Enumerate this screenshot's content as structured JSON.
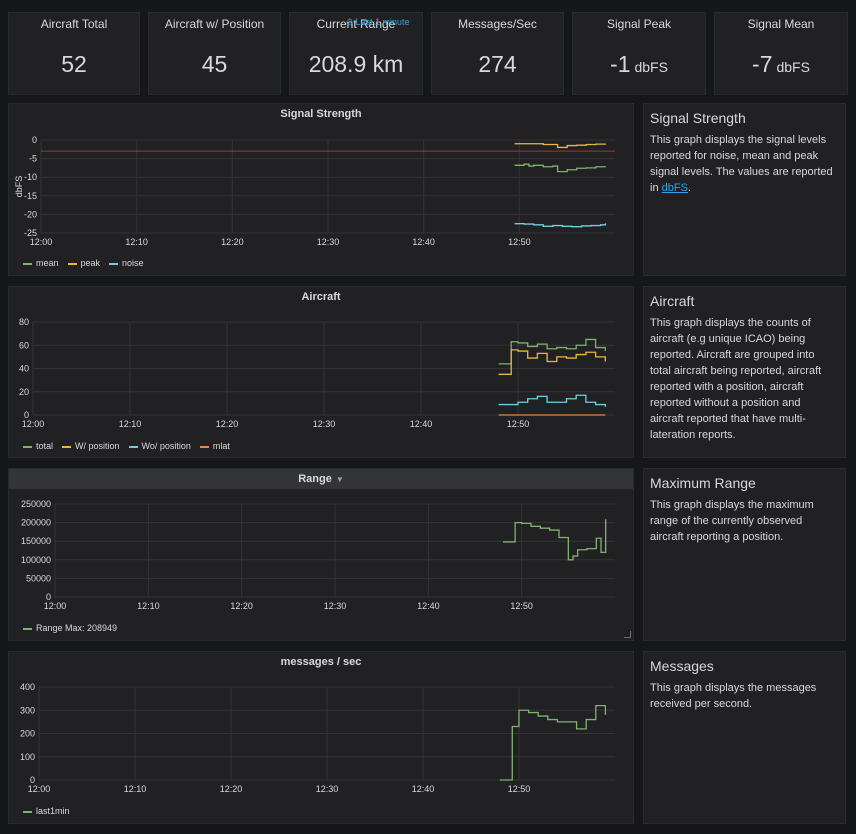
{
  "stats": [
    {
      "title": "Aircraft Total",
      "value": "52",
      "unit": ""
    },
    {
      "title": "Aircraft w/ Position",
      "value": "45",
      "unit": ""
    },
    {
      "title": "Current Range",
      "value": "208.9 km",
      "unit": "",
      "overlay": "⏱ Last 1 minute"
    },
    {
      "title": "Messages/Sec",
      "value": "274",
      "unit": ""
    },
    {
      "title": "Signal Peak",
      "value": "-1",
      "unit": "dbFS"
    },
    {
      "title": "Signal Mean",
      "value": "-7",
      "unit": "dbFS"
    }
  ],
  "graphs": {
    "signal": {
      "title": "Signal Strength",
      "ylabel": "dbFS",
      "legend": [
        {
          "name": "mean",
          "color": "#7eb26d"
        },
        {
          "name": "peak",
          "color": "#eab839"
        },
        {
          "name": "noise",
          "color": "#6ed0e0"
        }
      ]
    },
    "aircraft": {
      "title": "Aircraft",
      "legend": [
        {
          "name": "total",
          "color": "#7eb26d"
        },
        {
          "name": "W/ position",
          "color": "#eab839"
        },
        {
          "name": "Wo/ position",
          "color": "#6ed0e0"
        },
        {
          "name": "mlat",
          "color": "#ef843c"
        }
      ]
    },
    "range": {
      "title": "Range",
      "legend": [
        {
          "name": "Range  Max: 208949",
          "color": "#7eb26d"
        }
      ]
    },
    "messages": {
      "title": "messages / sec",
      "legend": [
        {
          "name": "last1min",
          "color": "#7eb26d"
        }
      ]
    }
  },
  "texts": {
    "signal": {
      "title": "Signal Strength",
      "body": "This graph displays the signal levels reported for noise, mean and peak signal levels. The values are reported in ",
      "link": "dbFS",
      "tail": "."
    },
    "aircraft": {
      "title": "Aircraft",
      "body": "This graph displays the counts of aircraft (e.g unique ICAO) being reported. Aircraft are grouped into total aircraft being reported, aircraft reported with a position, aircraft reported without a position and aircraft reported that have multi-lateration reports."
    },
    "range": {
      "title": "Maximum Range",
      "body": "This graph displays the maximum range of the currently observed aircraft reporting a position."
    },
    "messages": {
      "title": "Messages",
      "body": "This graph displays the messages received per second."
    }
  },
  "chart_data": [
    {
      "id": "signal",
      "type": "line",
      "title": "Signal Strength",
      "ylabel": "dbFS",
      "x_ticks": [
        "12:00",
        "12:10",
        "12:20",
        "12:30",
        "12:40",
        "12:50"
      ],
      "y_ticks": [
        0,
        -5,
        -10,
        -15,
        -20,
        -25
      ],
      "ylim": [
        -25,
        0
      ],
      "xlim": [
        0,
        60
      ],
      "threshold": -3,
      "threshold_color": "#e24d42",
      "series": [
        {
          "name": "mean",
          "color": "#7eb26d",
          "x": [
            49.5,
            50.5,
            51,
            51.5,
            52.5,
            53.5,
            54,
            55,
            56,
            57,
            58,
            59
          ],
          "y": [
            -6.8,
            -6.5,
            -7,
            -6.8,
            -7.2,
            -7.0,
            -8.5,
            -8.0,
            -7.6,
            -7.5,
            -7.2,
            -7.3
          ]
        },
        {
          "name": "peak",
          "color": "#eab839",
          "x": [
            49.5,
            51,
            52.5,
            54,
            55,
            56,
            57,
            58,
            59
          ],
          "y": [
            -1,
            -1,
            -1.2,
            -2,
            -1.5,
            -1.4,
            -1.2,
            -1.1,
            -1
          ]
        },
        {
          "name": "noise",
          "color": "#6ed0e0",
          "x": [
            49.5,
            50.5,
            51.5,
            52.5,
            53.5,
            54.5,
            55.5,
            56.5,
            57.5,
            58.5,
            59
          ],
          "y": [
            -22.5,
            -22.6,
            -22.8,
            -23.2,
            -23.0,
            -23.2,
            -23.3,
            -23.1,
            -23.0,
            -22.8,
            -22.4
          ]
        }
      ]
    },
    {
      "id": "aircraft",
      "type": "line",
      "title": "Aircraft",
      "x_ticks": [
        "12:00",
        "12:10",
        "12:20",
        "12:30",
        "12:40",
        "12:50"
      ],
      "y_ticks": [
        80,
        60,
        40,
        20,
        0
      ],
      "ylim": [
        0,
        80
      ],
      "xlim": [
        0,
        60
      ],
      "series": [
        {
          "name": "total",
          "color": "#7eb26d",
          "x": [
            48,
            49,
            49.3,
            50,
            51,
            52,
            53,
            54,
            55,
            56,
            57,
            58,
            59
          ],
          "y": [
            44,
            44,
            63,
            62,
            59,
            61,
            57,
            58,
            57,
            60,
            65,
            58,
            55
          ]
        },
        {
          "name": "W/ position",
          "color": "#eab839",
          "x": [
            48,
            49,
            49.3,
            50,
            51,
            52,
            53,
            54,
            55,
            56,
            57,
            58,
            59
          ],
          "y": [
            35,
            35,
            56,
            55,
            49,
            53,
            46,
            50,
            49,
            52,
            54,
            50,
            46
          ]
        },
        {
          "name": "Wo/ position",
          "color": "#6ed0e0",
          "x": [
            48,
            49,
            50,
            51,
            52,
            53,
            54,
            55,
            56,
            57,
            58,
            59
          ],
          "y": [
            9,
            9,
            11,
            14,
            16,
            11,
            11,
            14,
            17,
            11,
            9,
            7
          ]
        },
        {
          "name": "mlat",
          "color": "#ef843c",
          "x": [
            48,
            59
          ],
          "y": [
            0,
            0
          ]
        }
      ]
    },
    {
      "id": "range",
      "type": "line",
      "title": "Range",
      "x_ticks": [
        "12:00",
        "12:10",
        "12:20",
        "12:30",
        "12:40",
        "12:50"
      ],
      "y_ticks": [
        250000,
        200000,
        150000,
        100000,
        50000,
        0
      ],
      "ylim": [
        0,
        250000
      ],
      "xlim": [
        0,
        60
      ],
      "series": [
        {
          "name": "Range",
          "color": "#7eb26d",
          "x": [
            48,
            49,
            49.3,
            50,
            51,
            52,
            53,
            54,
            55,
            55.5,
            56,
            57,
            58,
            58.5,
            59
          ],
          "y": [
            148000,
            148000,
            200000,
            198000,
            190000,
            185000,
            180000,
            160000,
            100000,
            110000,
            127000,
            130000,
            158000,
            120000,
            208949
          ]
        }
      ]
    },
    {
      "id": "messages",
      "type": "line",
      "title": "messages / sec",
      "x_ticks": [
        "12:00",
        "12:10",
        "12:20",
        "12:30",
        "12:40",
        "12:50"
      ],
      "y_ticks": [
        400,
        300,
        200,
        100,
        0
      ],
      "ylim": [
        0,
        400
      ],
      "xlim": [
        0,
        60
      ],
      "series": [
        {
          "name": "last1min",
          "color": "#7eb26d",
          "x": [
            48,
            49,
            49.3,
            50,
            51,
            52,
            53,
            54,
            55,
            56,
            57,
            58,
            59
          ],
          "y": [
            0,
            0,
            230,
            300,
            290,
            275,
            260,
            250,
            250,
            220,
            260,
            320,
            280
          ]
        }
      ]
    }
  ]
}
